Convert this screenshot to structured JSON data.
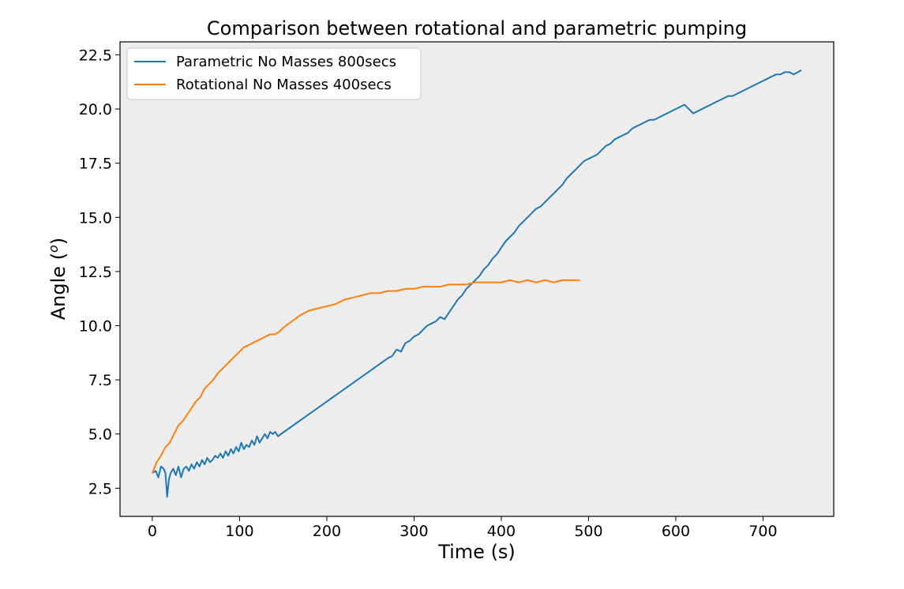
{
  "chart_data": {
    "type": "line",
    "title": "Comparison between rotational and parametric pumping",
    "xlabel": "Time (s)",
    "ylabel_text": "Angle (",
    "ylabel_sup": "o",
    "ylabel_close": ")",
    "xlim": [
      -37,
      781
    ],
    "ylim": [
      1.2,
      23.1
    ],
    "xticks": [
      0,
      100,
      200,
      300,
      400,
      500,
      600,
      700
    ],
    "xtick_labels": [
      "0",
      "100",
      "200",
      "300",
      "400",
      "500",
      "600",
      "700"
    ],
    "yticks": [
      2.5,
      5.0,
      7.5,
      10.0,
      12.5,
      15.0,
      17.5,
      20.0,
      22.5
    ],
    "ytick_labels": [
      "2.5",
      "5.0",
      "7.5",
      "10.0",
      "12.5",
      "15.0",
      "17.5",
      "20.0",
      "22.5"
    ],
    "grid": false,
    "legend_position": "top-left",
    "background_color": "#ededed",
    "series": [
      {
        "name": "Parametric No Masses 800secs",
        "color": "#1f77b4",
        "x": [
          0,
          4,
          7,
          10,
          13,
          15,
          17,
          19,
          21,
          24,
          27,
          30,
          33,
          36,
          39,
          42,
          45,
          48,
          51,
          54,
          57,
          60,
          63,
          66,
          69,
          72,
          75,
          78,
          81,
          84,
          87,
          90,
          93,
          96,
          99,
          102,
          105,
          108,
          111,
          114,
          117,
          120,
          123,
          126,
          129,
          132,
          135,
          138,
          141,
          144,
          270,
          275,
          280,
          285,
          290,
          295,
          300,
          305,
          310,
          315,
          320,
          325,
          330,
          335,
          340,
          345,
          350,
          355,
          360,
          365,
          370,
          375,
          380,
          385,
          390,
          395,
          400,
          405,
          410,
          415,
          420,
          425,
          430,
          435,
          440,
          445,
          450,
          455,
          460,
          465,
          470,
          475,
          480,
          485,
          490,
          495,
          500,
          505,
          510,
          515,
          520,
          525,
          530,
          535,
          540,
          545,
          550,
          555,
          560,
          565,
          570,
          575,
          580,
          585,
          590,
          595,
          600,
          605,
          610,
          615,
          620,
          625,
          630,
          635,
          640,
          645,
          650,
          655,
          660,
          665,
          670,
          675,
          680,
          685,
          690,
          695,
          700,
          705,
          710,
          715,
          720,
          725,
          730,
          735,
          740,
          744
        ],
        "y": [
          3.2,
          3.3,
          3.0,
          3.5,
          3.4,
          3.2,
          2.1,
          2.9,
          3.2,
          3.4,
          3.1,
          3.5,
          3.0,
          3.4,
          3.5,
          3.3,
          3.6,
          3.4,
          3.7,
          3.5,
          3.8,
          3.6,
          3.9,
          3.7,
          3.8,
          4.0,
          3.9,
          4.1,
          3.9,
          4.2,
          4.0,
          4.3,
          4.1,
          4.4,
          4.2,
          4.6,
          4.3,
          4.5,
          4.4,
          4.7,
          4.5,
          4.9,
          4.6,
          4.8,
          5.0,
          4.8,
          5.1,
          5.0,
          5.1,
          4.9,
          8.5,
          8.6,
          8.9,
          8.8,
          9.2,
          9.3,
          9.5,
          9.6,
          9.8,
          10.0,
          10.1,
          10.2,
          10.4,
          10.3,
          10.6,
          10.9,
          11.2,
          11.4,
          11.7,
          11.9,
          12.1,
          12.3,
          12.6,
          12.8,
          13.1,
          13.3,
          13.6,
          13.9,
          14.1,
          14.3,
          14.6,
          14.8,
          15.0,
          15.2,
          15.4,
          15.5,
          15.7,
          15.9,
          16.1,
          16.3,
          16.5,
          16.8,
          17.0,
          17.2,
          17.4,
          17.6,
          17.7,
          17.8,
          17.9,
          18.1,
          18.3,
          18.4,
          18.6,
          18.7,
          18.8,
          18.9,
          19.1,
          19.2,
          19.3,
          19.4,
          19.5,
          19.5,
          19.6,
          19.7,
          19.8,
          19.9,
          20.0,
          20.1,
          20.2,
          20.0,
          19.8,
          19.9,
          20.0,
          20.1,
          20.2,
          20.3,
          20.4,
          20.5,
          20.6,
          20.6,
          20.7,
          20.8,
          20.9,
          21.0,
          21.1,
          21.2,
          21.3,
          21.4,
          21.5,
          21.6,
          21.6,
          21.7,
          21.7,
          21.6,
          21.7,
          21.8
        ]
      },
      {
        "name": "Rotational No Masses 400secs",
        "color": "#ff7f0e",
        "x": [
          0,
          5,
          10,
          15,
          20,
          25,
          30,
          35,
          40,
          45,
          50,
          55,
          60,
          65,
          70,
          75,
          80,
          85,
          90,
          95,
          100,
          105,
          110,
          115,
          120,
          125,
          130,
          135,
          140,
          145,
          150,
          160,
          170,
          180,
          190,
          200,
          210,
          220,
          230,
          240,
          250,
          260,
          270,
          280,
          290,
          300,
          310,
          320,
          330,
          340,
          350,
          360,
          370,
          380,
          390,
          400,
          410,
          420,
          430,
          440,
          450,
          460,
          470,
          480,
          490
        ],
        "y": [
          3.2,
          3.7,
          4.0,
          4.4,
          4.6,
          5.0,
          5.4,
          5.6,
          5.9,
          6.2,
          6.5,
          6.7,
          7.1,
          7.3,
          7.5,
          7.8,
          8.0,
          8.2,
          8.4,
          8.6,
          8.8,
          9.0,
          9.1,
          9.2,
          9.3,
          9.4,
          9.5,
          9.6,
          9.6,
          9.7,
          9.9,
          10.2,
          10.5,
          10.7,
          10.8,
          10.9,
          11.0,
          11.2,
          11.3,
          11.4,
          11.5,
          11.5,
          11.6,
          11.6,
          11.7,
          11.7,
          11.8,
          11.8,
          11.8,
          11.9,
          11.9,
          11.9,
          12.0,
          12.0,
          12.0,
          12.0,
          12.1,
          12.0,
          12.1,
          12.0,
          12.1,
          12.0,
          12.1,
          12.1,
          12.1
        ]
      }
    ]
  }
}
